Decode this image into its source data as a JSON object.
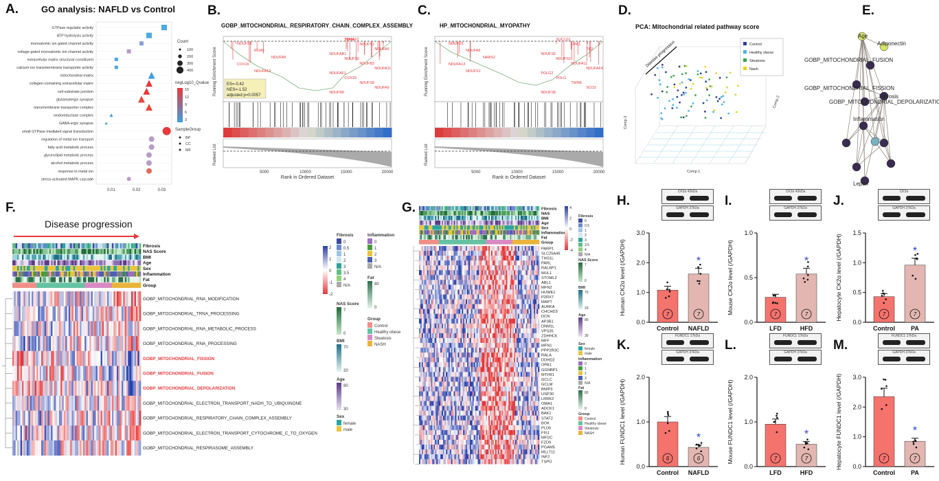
{
  "panels": {
    "A": {
      "letter": "A.",
      "title": "GO analysis: NAFLD vs Control",
      "terms": [
        "GTPase regulator activity",
        "ATP hydrolysis activity",
        "monoatomic ion gated channel activity",
        "voltage-gated monoatomic ion channel activity",
        "extracellular matrix structural constituent",
        "calcium ion transmembrane transporter activity",
        "mitochondrial matrix",
        "collagen-containing extracellular matrix",
        "cell-substrate junction",
        "glutamatergic synapse",
        "transmembrane transporter complex",
        "oxidoreductase complex",
        "GABA-ergic synapse",
        "small GTPase mediated signal transduction",
        "regulation of metal ion transport",
        "fatty acid metabolic process",
        "glycerolipid metabolic process",
        "alcohol metabolic process",
        "response to metal ion",
        "stress-activated MAPK cascade"
      ],
      "x_ticks": [
        "0.01",
        "0.02",
        "0.03"
      ],
      "legend_count_title": "Count",
      "legend_counts": [
        "100",
        "200",
        "300",
        "400"
      ],
      "legend_q_title": "negLog10_Qvalue",
      "legend_q_ticks": [
        "15",
        "12",
        "9",
        "6",
        "3"
      ],
      "legend_group_title": "SampleGroup",
      "legend_groups": [
        "BP",
        "CC",
        "MF"
      ]
    },
    "B": {
      "letter": "B.",
      "title": "GOBP_MITOCHONDRIAL_RESPIRATORY_CHAIN_COMPLEX_ASSEMBLY",
      "ylabel_top": "Running Enrichment Score",
      "ylabel_bottom": "Ranked List",
      "xlabel": "Rank in Ordered Dataset",
      "x_ticks": [
        "5000",
        "10000",
        "15000",
        "20000"
      ],
      "stats": [
        "ES=-0.42",
        "NES=-1.52",
        "adjusted p=0.0057"
      ],
      "genes": [
        "NDUFS5",
        "ROA5",
        "NDUFA8",
        "COX16",
        "NDUFA13",
        "SDHAF2",
        "NDUFS1",
        "NDUFA5",
        "NDUFAB1",
        "NDUFS6",
        "NDUFB3",
        "NDUFA11",
        "NDUFAF1",
        "COX18",
        "NDUFS8",
        "NDUFA9",
        "NDUFB8",
        "TIMM"
      ]
    },
    "C": {
      "letter": "C.",
      "title": "HP_MITOCHONDRIAL_MYOPATHY",
      "ylabel_top": "Running Enrichment Score",
      "ylabel_bottom": "Ranked List",
      "xlabel": "Rank in Ordered Dataset",
      "x_ticks": [
        "5000",
        "10000",
        "15000",
        "20000"
      ],
      "genes": [
        "NDUFS5",
        "NDUFA8",
        "NARS2",
        "NDUFA13",
        "NDUFS1",
        "SUCLG1",
        "OPA1",
        "TK2",
        "NDUFS6",
        "NDUFS3",
        "NDUFA11",
        "NDUFAF4",
        "POLG2",
        "POLG",
        "TWNK",
        "SCO2",
        "NDUFS8"
      ]
    },
    "D": {
      "letter": "D.",
      "title": "PCA: Mitochondrial related pathway score",
      "legend": [
        "Control",
        "Healthy obese",
        "Steatosis",
        "Nash"
      ],
      "legend_colors": [
        "#2c3e9a",
        "#4fb3e6",
        "#3aa54a",
        "#e8d31c"
      ],
      "arrow_label": "Disease progression",
      "axis1": "Comp.1",
      "axis2": "Comp.2",
      "axis3": "Comp.3"
    },
    "E": {
      "letter": "E.",
      "nodes": [
        "Age",
        "Adiponectin",
        "GOBP_MITOCHONDRIAL_FUSION",
        "Fibrosis",
        "GOBP_MITOCHONDRIAL_FISSION",
        "GOBP_MITOCHONDRIAL_DEPOLARIZATION",
        "Inflammation",
        "Leptin"
      ]
    },
    "F": {
      "letter": "F.",
      "banner": "Disease progression",
      "tracks": [
        "Fibrosis",
        "NAS Score",
        "BMI",
        "Age",
        "Sex",
        "Inflammation",
        "Fat",
        "Group"
      ],
      "rows": [
        "GOBP_MITOCHONDRIAL_RNA_MODIFICATION",
        "GOBP_MITOCHONDRIAL_TRNA_PROCESSING",
        "GOBP_MITOCHONDRIAL_RNA_METABOLIC_PROCESS",
        "GOBP_MITOCHONDRIAL_RNA_PROCESSING",
        "GOBP_MITOCHONDRIAL_FISSION",
        "GOBP_MITOCHONDRIAL_FUSION",
        "GOBP_MITOCHONDRIAL_DEPOLARIZATION",
        "GOBP_MITOCHONDRIAL_ELECTRON_TRANSPORT_NADH_TO_UBIQUINONE",
        "GOBP_MITOCHONDRIAL_RESPIRATORY_CHAIN_COMPLEX_ASSEMBLY",
        "GOBP_MITOCHONDRIAL_ELECTRON_TRANSPORT_CYTOCHROME_C_TO_OXYGEN",
        "GOBP_MITOCHONDRIAL_RESPIRASOME_ASSEMBLY"
      ],
      "highlighted_rows": [
        "GOBP_MITOCHONDRIAL_FISSION",
        "GOBP_MITOCHONDRIAL_FUSION",
        "GOBP_MITOCHONDRIAL_DEPOLARIZATION"
      ],
      "scale_ticks": [
        "2",
        "1",
        "0",
        "-1",
        "-2"
      ],
      "legend_fibrosis": {
        "title": "Fibrosis",
        "items": [
          "0",
          "0.5",
          "1",
          "2",
          "3",
          "3.5",
          "4",
          "N/A"
        ]
      },
      "legend_inflammation": {
        "title": "Inflammation",
        "items": [
          "0",
          "1",
          "2",
          "3",
          "N/A"
        ]
      },
      "legend_fat": {
        "title": "Fat",
        "items": [
          "80",
          "0"
        ]
      },
      "legend_nas": {
        "title": "NAS Score",
        "items": [
          "7",
          "0"
        ]
      },
      "legend_bmi": {
        "title": "BMI",
        "items": [
          "70",
          "20"
        ]
      },
      "legend_age": {
        "title": "Age",
        "items": [
          "80",
          "30"
        ]
      },
      "legend_sex": {
        "title": "Sex",
        "items": [
          "female",
          "male"
        ]
      },
      "legend_group": {
        "title": "Group",
        "items": [
          "Control",
          "Healthy obese",
          "Steatosis",
          "NASH"
        ]
      }
    },
    "G": {
      "letter": "G.",
      "tracks": [
        "Fibrosis",
        "NAS",
        "BMI",
        "Age",
        "Sex",
        "Inflammation",
        "Fat",
        "Group"
      ],
      "genes": [
        "PARP1",
        "SLC25A46",
        "THG1L",
        "PARL",
        "RALBP1",
        "MUL1",
        "STOML2",
        "ABL1",
        "MFN2",
        "HUWE1",
        "P2RX7",
        "MAPT",
        "AURKA",
        "CHCHD3",
        "DCN",
        "AP3B1",
        "DNM1L",
        "VPS35",
        "ZDHHC6",
        "MFF",
        "MFN1",
        "PPP2R3C",
        "RALA",
        "DDHD2",
        "OPA1",
        "GGNBP1",
        "MTFR1",
        "GCLC",
        "GCLM",
        "BNIP3",
        "USP30",
        "LRRK2",
        "OMA1",
        "ADCK1",
        "BAK1",
        "STAT2",
        "BOK",
        "PLD6",
        "FIS1",
        "MFDC",
        "FZD9",
        "PGAM5",
        "MLLT11",
        "INF2",
        "TSPO"
      ],
      "scale_ticks": [
        "4",
        "2",
        "0",
        "-2",
        "-4"
      ],
      "legend_fibrosis": {
        "title": "Fibrosis",
        "items": [
          "0",
          "0.5",
          "1",
          "2",
          "3",
          "3.5",
          "4",
          "N/A"
        ]
      },
      "legend_nas": {
        "title": "NAS Score",
        "items": [
          "7",
          "0"
        ]
      },
      "legend_bmi": {
        "title": "BMI",
        "items": [
          "70",
          "20"
        ]
      },
      "legend_age": {
        "title": "Age",
        "items": [
          "80",
          "30"
        ]
      },
      "legend_sex": {
        "title": "Sex",
        "items": [
          "female",
          "male"
        ]
      },
      "legend_inflammation": {
        "title": "Inflammation",
        "items": [
          "0",
          "1",
          "2",
          "3",
          "N/A"
        ]
      },
      "legend_fat": {
        "title": "Fat",
        "items": [
          "80",
          "0"
        ]
      },
      "legend_group": {
        "title": "Group",
        "items": [
          "Control",
          "Healthy obese",
          "Steatosis",
          "NASH"
        ]
      }
    }
  },
  "chart_data": [
    {
      "panel": "H",
      "letter": "H.",
      "type": "bar",
      "ylabel": "Human CK2α level (/GAPDH)",
      "categories": [
        "Control",
        "NAFLD"
      ],
      "values": [
        1.08,
        1.62
      ],
      "n": [
        "7",
        "7"
      ],
      "ylim": [
        0,
        3.0
      ],
      "yticks": [
        "0.0",
        "1.0",
        "2.0",
        "3.0"
      ],
      "blot_labels": [
        "CK2α  42kDa",
        "GAPDH  37kDa"
      ],
      "significant": "*"
    },
    {
      "panel": "I",
      "letter": "I.",
      "type": "bar",
      "ylabel": "Mouse CK2α level (/GAPDH)",
      "categories": [
        "LFD",
        "HFD"
      ],
      "values": [
        0.28,
        0.54
      ],
      "n": [
        "7",
        "7"
      ],
      "ylim": [
        0,
        1.0
      ],
      "yticks": [
        "0.0",
        "0.5",
        "1.0"
      ],
      "blot_labels": [
        "CK2α  42kDa",
        "GAPDH  37kDa"
      ],
      "significant": "*"
    },
    {
      "panel": "J",
      "letter": "J.",
      "type": "bar",
      "ylabel": "Hepatocyte CK2α level (/GAPDH)",
      "categories": [
        "Control",
        "PA"
      ],
      "values": [
        0.43,
        0.96
      ],
      "n": [
        "7",
        "7"
      ],
      "ylim": [
        0,
        1.5
      ],
      "yticks": [
        "0.0",
        "0.5",
        "1.0",
        "1.5"
      ],
      "blot_labels": [
        "CK2α",
        "GAPDH  37kDa"
      ],
      "significant": "*"
    },
    {
      "panel": "K",
      "letter": "K.",
      "type": "bar",
      "ylabel": "Human FUNDC1 level (/GAPDH)",
      "categories": [
        "Control",
        "NAFLD"
      ],
      "values": [
        1.0,
        0.43
      ],
      "n": [
        "6",
        "6"
      ],
      "ylim": [
        0,
        2.0
      ],
      "yticks": [
        "0.0",
        "1.0",
        "2.0"
      ],
      "blot_labels": [
        "FUNDC1  17kDa",
        "GAPDH  37kDa"
      ],
      "significant": "*"
    },
    {
      "panel": "L",
      "letter": "L.",
      "type": "bar",
      "ylabel": "Mouse FUNDC1 level (/GAPDH)",
      "categories": [
        "LFD",
        "HFD"
      ],
      "values": [
        0.95,
        0.5
      ],
      "n": [
        "7",
        "7"
      ],
      "ylim": [
        0,
        2.0
      ],
      "yticks": [
        "0.0",
        "1.0",
        "2.0"
      ],
      "blot_labels": [
        "FUNDC1  17kDa",
        "GAPDH  37kDa"
      ],
      "significant": "*"
    },
    {
      "panel": "M",
      "letter": "M.",
      "type": "bar",
      "ylabel": "Hepatocyte FUNDC1 level (/GAPDH)",
      "categories": [
        "Control",
        "PA"
      ],
      "values": [
        2.35,
        0.85
      ],
      "n": [
        "7",
        "7"
      ],
      "ylim": [
        0,
        3.0
      ],
      "yticks": [
        "0.0",
        "1.0",
        "2.0",
        "3.0"
      ],
      "blot_labels": [
        "FUNDC1  17kDa",
        "GAPDH  37kDa"
      ],
      "significant": "*"
    }
  ]
}
